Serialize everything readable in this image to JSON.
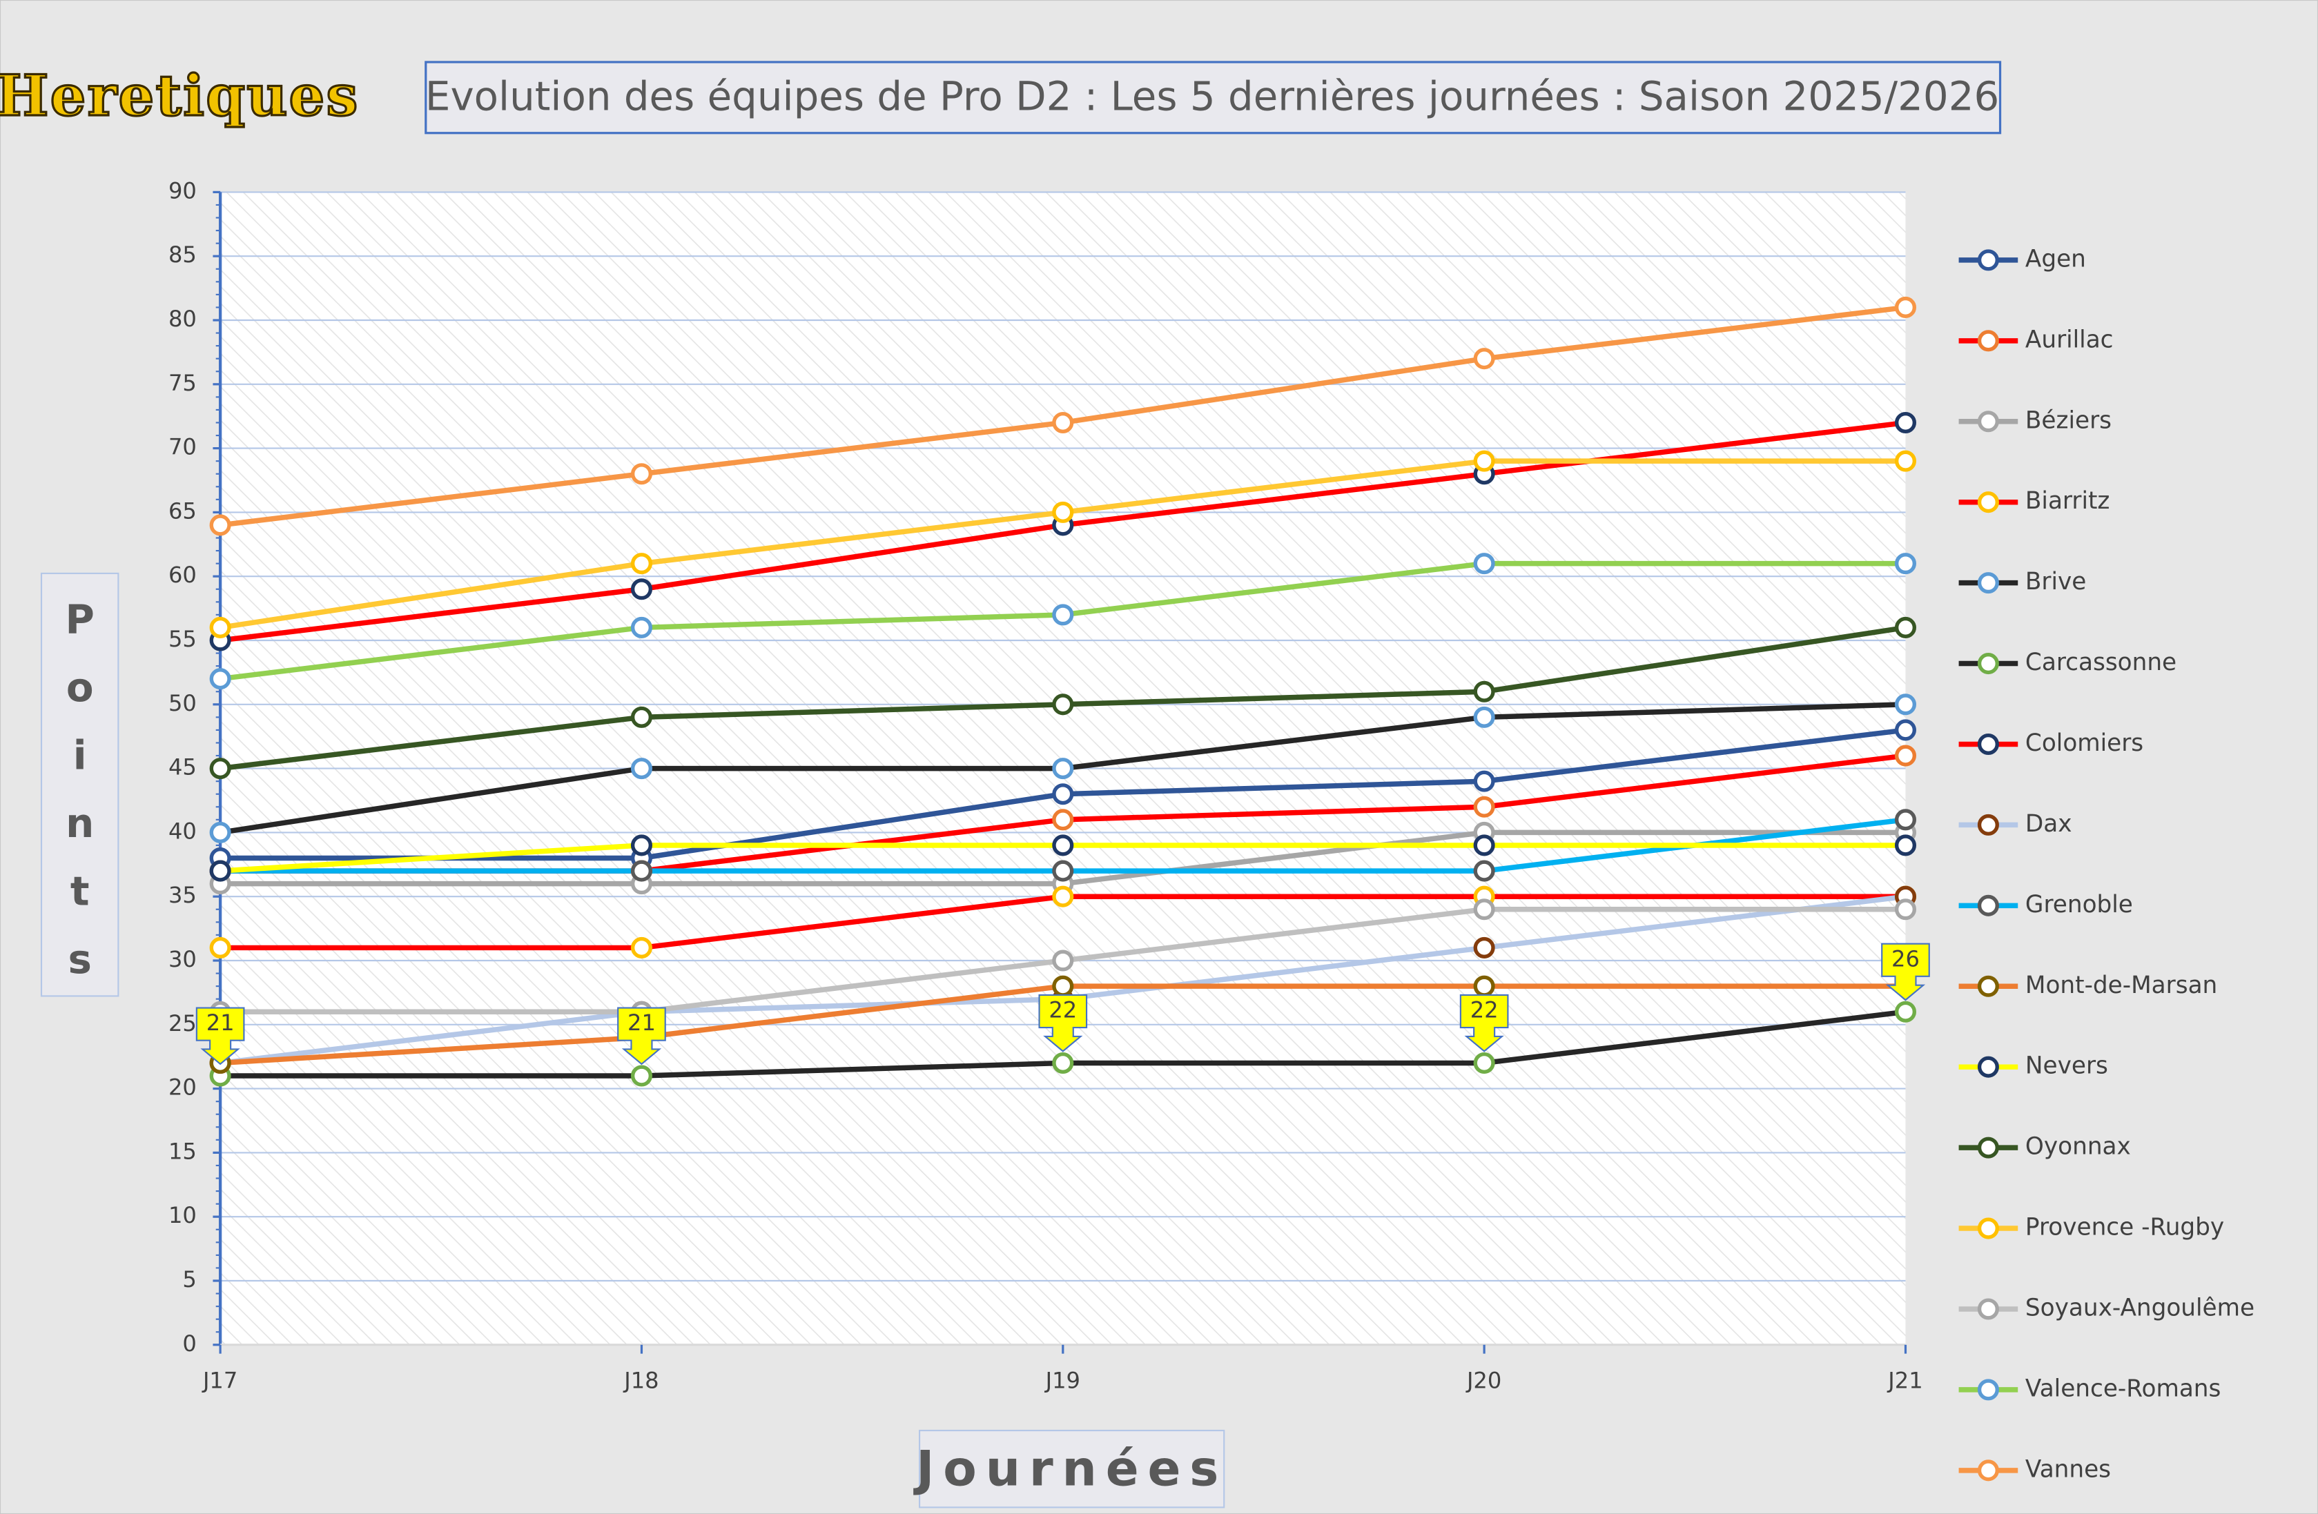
{
  "logo": "Heretiques",
  "chart_data": {
    "type": "line",
    "title": "Evolution des équipes de Pro D2 : Les 5 dernières journées : Saison 2025/2026",
    "ylabel": "Points",
    "xlabel": "Journées",
    "categories": [
      "J17",
      "J18",
      "J19",
      "J20",
      "J21"
    ],
    "ylim": [
      0,
      90
    ],
    "yticks": [
      0,
      5,
      10,
      15,
      20,
      25,
      30,
      35,
      40,
      45,
      50,
      55,
      60,
      65,
      70,
      75,
      80,
      85,
      90
    ],
    "grid": true,
    "legend": "right",
    "series": [
      {
        "name": "Agen",
        "color": "#2f5597",
        "marker_color": "#2f5597",
        "values": [
          38,
          38,
          43,
          44,
          48
        ]
      },
      {
        "name": "Aurillac",
        "color": "#ff0000",
        "marker_color": "#ed7d31",
        "values": [
          37,
          37,
          41,
          42,
          46
        ]
      },
      {
        "name": "Béziers",
        "color": "#a6a6a6",
        "marker_color": "#a6a6a6",
        "values": [
          36,
          36,
          36,
          40,
          40
        ]
      },
      {
        "name": "Biarritz",
        "color": "#ff0000",
        "marker_color": "#ffc000",
        "values": [
          31,
          31,
          35,
          35,
          35
        ]
      },
      {
        "name": "Brive",
        "color": "#262626",
        "marker_color": "#5b9bd5",
        "values": [
          40,
          45,
          45,
          49,
          50
        ]
      },
      {
        "name": "Carcassonne",
        "color": "#262626",
        "marker_color": "#70ad47",
        "values": [
          21,
          21,
          22,
          22,
          26
        ],
        "data_labels": true
      },
      {
        "name": "Colomiers",
        "color": "#ff0000",
        "marker_color": "#1f3864",
        "values": [
          55,
          59,
          64,
          68,
          72
        ]
      },
      {
        "name": "Dax",
        "color": "#b4c7e7",
        "marker_color": "#843c0c",
        "values": [
          22,
          26,
          27,
          31,
          35
        ]
      },
      {
        "name": "Grenoble",
        "color": "#00b0f0",
        "marker_color": "#595959",
        "values": [
          37,
          37,
          37,
          37,
          41
        ]
      },
      {
        "name": "Mont-de-Marsan",
        "color": "#ed7d31",
        "marker_color": "#7f6000",
        "values": [
          22,
          24,
          28,
          28,
          28
        ]
      },
      {
        "name": "Nevers",
        "color": "#ffff00",
        "marker_color": "#1f3864",
        "values": [
          37,
          39,
          39,
          39,
          39
        ]
      },
      {
        "name": "Oyonnax",
        "color": "#375623",
        "marker_color": "#375623",
        "values": [
          45,
          49,
          50,
          51,
          56
        ]
      },
      {
        "name": "Provence -Rugby",
        "color": "#ffc832",
        "marker_color": "#ffc000",
        "values": [
          56,
          61,
          65,
          69,
          69
        ]
      },
      {
        "name": "Soyaux-Angoulême",
        "color": "#bfbfbf",
        "marker_color": "#a6a6a6",
        "values": [
          26,
          26,
          30,
          34,
          34
        ]
      },
      {
        "name": "Valence-Romans",
        "color": "#92d050",
        "marker_color": "#5b9bd5",
        "values": [
          52,
          56,
          57,
          61,
          61
        ]
      },
      {
        "name": "Vannes",
        "color": "#f79646",
        "marker_color": "#f79646",
        "values": [
          64,
          68,
          72,
          77,
          81
        ]
      }
    ]
  }
}
